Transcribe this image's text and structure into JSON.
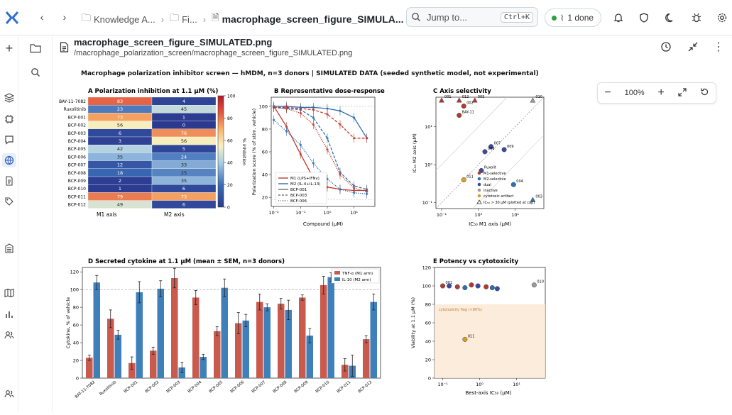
{
  "breadcrumbs": {
    "crumb1": "Knowledge A...",
    "crumb2": "Fi...",
    "current": "macrophage_screen_figure_SIMULA..."
  },
  "search": {
    "placeholder": "Jump to...",
    "shortcut": "Ctrl+K"
  },
  "status": {
    "label": "1 done"
  },
  "file": {
    "name": "macrophage_screen_figure_SIMULATED.png",
    "path": "/macrophage_polarization_screen/macrophage_screen_figure_SIMULATED.png"
  },
  "zoom": {
    "level": "100%"
  },
  "figure": {
    "suptitle": "Macrophage polarization inhibitor screen — hMDM, n=3 donors   |   SIMULATED DATA (seeded synthetic model, not experimental)",
    "panelA": {
      "title": "A  Polarization inhibition at 1.1 μM (%)",
      "rows": [
        "BAY-11-7082",
        "Ruxolitinib",
        "BCP-001",
        "BCP-002",
        "BCP-003",
        "BCP-004",
        "BCP-005",
        "BCP-006",
        "BCP-007",
        "BCP-008",
        "BCP-009",
        "BCP-010",
        "BCP-011",
        "BCP-012"
      ],
      "m1": [
        83,
        23,
        73,
        56,
        6,
        3,
        42,
        35,
        12,
        18,
        2,
        1,
        79,
        49
      ],
      "m2": [
        4,
        45,
        1,
        0,
        76,
        56,
        5,
        24,
        33,
        25,
        35,
        6,
        73,
        6
      ],
      "cols": [
        "M1 axis",
        "M2 axis"
      ],
      "cbar_label": "% inhibition",
      "cbar_ticks": [
        "0",
        "20",
        "40",
        "60",
        "80",
        "100"
      ]
    },
    "panelB": {
      "title": "B  Representative dose-response",
      "ylabel": "Polarization score (% of stim. vehicle)",
      "xlabel": "Compound (μM)",
      "xticks": [
        "10⁻²",
        "10⁻¹",
        "10⁰",
        "10¹"
      ],
      "yticks": [
        "20",
        "40",
        "60",
        "80",
        "100"
      ],
      "legend": [
        "M1 (LPS+IFNγ)",
        "M2 (IL-4+IL-13)",
        "BCP-001",
        "BCP-003",
        "BCF-006"
      ]
    },
    "panelC": {
      "title": "C  Axis selectivity",
      "ylabel": "IC₅₀ M2 axis (μM)",
      "xlabel": "IC₅₀ M1 axis (μM)",
      "xticks": [
        "10⁻¹",
        "10⁰",
        "10¹"
      ],
      "yticks": [
        "10⁻¹",
        "10⁰",
        "10¹"
      ],
      "legend": [
        "M1-selective",
        "M2-selective",
        "dual",
        "inactive",
        "cytotoxic artifact",
        "IC₅₀ > 30 μM (plotted at cap)"
      ],
      "labels": [
        "001",
        "012",
        "005",
        "002",
        "BAY-11",
        "007",
        "008",
        "009",
        "Ruxolit",
        "004",
        "011",
        "010",
        "003"
      ]
    },
    "panelD": {
      "title": "D  Secreted cytokine at 1.1 μM (mean ± SEM, n=3 donors)",
      "ylabel": "Cytokine, % of vehicle",
      "yticks": [
        "0",
        "20",
        "40",
        "60",
        "80",
        "100",
        "120"
      ],
      "categories": [
        "BAY-11-7082",
        "Ruxolitinib",
        "BCP-001",
        "BCP-002",
        "BCP-003",
        "BCP-004",
        "BCP-005",
        "BCP-006",
        "BCP-007",
        "BCP-008",
        "BCP-009",
        "BCP-010",
        "BCP-011",
        "BCP-012"
      ],
      "series": [
        {
          "name": "TNF-α (M1 arm)",
          "values": [
            23,
            67,
            17,
            31,
            113,
            91,
            53,
            62,
            86,
            84,
            91,
            105,
            15,
            44
          ]
        },
        {
          "name": "IL-10 (M2 arm)",
          "values": [
            108,
            49,
            97,
            101,
            12,
            24,
            102,
            65,
            80,
            77,
            48,
            114,
            14,
            86
          ]
        }
      ]
    },
    "panelE": {
      "title": "E  Potency vs cytotoxicity",
      "ylabel": "Viability at 1.1 μM (%)",
      "xlabel": "Best-axis IC₅₀ (μM)",
      "yticks": [
        "0",
        "20",
        "40",
        "60",
        "80",
        "100",
        "120"
      ],
      "xticks": [
        "10⁻¹",
        "10⁰",
        "10¹"
      ],
      "flag": "cytotoxicity flag (<80%)",
      "labels": [
        "001",
        "011",
        "010"
      ]
    }
  },
  "chart_data": [
    {
      "type": "heatmap",
      "title": "A  Polarization inhibition at 1.1 μM (%)",
      "rows": [
        "BAY-11-7082",
        "Ruxolitinib",
        "BCP-001",
        "BCP-002",
        "BCP-003",
        "BCP-004",
        "BCP-005",
        "BCP-006",
        "BCP-007",
        "BCP-008",
        "BCP-009",
        "BCP-010",
        "BCP-011",
        "BCP-012"
      ],
      "columns": [
        "M1 axis",
        "M2 axis"
      ],
      "values": [
        [
          83,
          4
        ],
        [
          23,
          45
        ],
        [
          73,
          1
        ],
        [
          56,
          0
        ],
        [
          6,
          76
        ],
        [
          3,
          56
        ],
        [
          42,
          5
        ],
        [
          35,
          24
        ],
        [
          12,
          33
        ],
        [
          18,
          25
        ],
        [
          2,
          35
        ],
        [
          1,
          6
        ],
        [
          79,
          73
        ],
        [
          49,
          6
        ]
      ],
      "zlim": [
        0,
        100
      ]
    },
    {
      "type": "line",
      "title": "B  Representative dose-response",
      "xscale": "log",
      "xlim": [
        0.01,
        50
      ],
      "ylim": [
        15,
        108
      ],
      "series": [
        {
          "name": "BCP-001",
          "arm": "M1",
          "x": [
            0.01,
            0.03,
            0.1,
            0.3,
            1,
            3,
            10,
            30
          ],
          "values": [
            100,
            82,
            58,
            37,
            29,
            27,
            26,
            26
          ]
        },
        {
          "name": "BCP-001",
          "arm": "M2",
          "x": [
            0.01,
            0.03,
            0.1,
            0.3,
            1,
            3,
            10,
            30
          ],
          "values": [
            100,
            100,
            99,
            99,
            98,
            96,
            90,
            72
          ]
        },
        {
          "name": "BCP-003",
          "arm": "M1",
          "x": [
            0.01,
            0.03,
            0.1,
            0.3,
            1,
            3,
            10,
            30
          ],
          "values": [
            99,
            99,
            98,
            97,
            93,
            84,
            72,
            72
          ]
        },
        {
          "name": "BCP-003",
          "arm": "M2",
          "x": [
            0.01,
            0.03,
            0.1,
            0.3,
            1,
            3,
            10,
            30
          ],
          "values": [
            99,
            98,
            97,
            90,
            72,
            42,
            30,
            27
          ]
        },
        {
          "name": "BCF-006",
          "arm": "M1",
          "x": [
            0.01,
            0.03,
            0.1,
            0.3,
            1,
            3,
            10,
            30
          ],
          "values": [
            99,
            98,
            94,
            84,
            62,
            40,
            28,
            25
          ]
        },
        {
          "name": "BCF-006",
          "arm": "M2",
          "x": [
            0.01,
            0.03,
            0.1,
            0.3,
            1,
            3,
            10,
            30
          ],
          "values": [
            88,
            78,
            66,
            50,
            36,
            27,
            24,
            23
          ]
        }
      ]
    },
    {
      "type": "scatter",
      "title": "C  Axis selectivity",
      "xscale": "log",
      "yscale": "log",
      "xlim": [
        0.07,
        60
      ],
      "ylim": [
        0.07,
        60
      ],
      "points": [
        {
          "label": "001",
          "x": 0.1,
          "y": 50,
          "class": "M1-selective"
        },
        {
          "label": "012",
          "x": 0.3,
          "y": 50,
          "class": "M1-selective"
        },
        {
          "label": "005",
          "x": 0.8,
          "y": 50,
          "class": "M1-selective"
        },
        {
          "label": "002",
          "x": 0.4,
          "y": 35,
          "class": "M1-selective"
        },
        {
          "label": "BAY-11",
          "x": 0.3,
          "y": 20,
          "class": "M1-selective"
        },
        {
          "label": "007",
          "x": 2.2,
          "y": 3,
          "class": "dual"
        },
        {
          "label": "008",
          "x": 1.5,
          "y": 2.2,
          "class": "dual"
        },
        {
          "label": "009",
          "x": 5,
          "y": 2.5,
          "class": "dual"
        },
        {
          "label": "Ruxolit",
          "x": 1.2,
          "y": 0.7,
          "class": "dual"
        },
        {
          "label": "004",
          "x": 9,
          "y": 0.3,
          "class": "M2-selective"
        },
        {
          "label": "011",
          "x": 0.4,
          "y": 0.4,
          "class": "cytotoxic artifact"
        },
        {
          "label": "010",
          "x": 30,
          "y": 50,
          "class": "inactive"
        },
        {
          "label": "003",
          "x": 30,
          "y": 0.12,
          "class": "M2-selective"
        }
      ]
    },
    {
      "type": "bar",
      "title": "D  Secreted cytokine at 1.1 μM (mean ± SEM, n=3 donors)",
      "ylim": [
        0,
        125
      ],
      "categories": [
        "BAY-11-7082",
        "Ruxolitinib",
        "BCP-001",
        "BCP-002",
        "BCP-003",
        "BCP-004",
        "BCP-005",
        "BCP-006",
        "BCP-007",
        "BCP-008",
        "BCP-009",
        "BCP-010",
        "BCP-011",
        "BCP-012"
      ],
      "series": [
        {
          "name": "TNF-α (M1 arm)",
          "values": [
            23,
            67,
            17,
            31,
            113,
            91,
            53,
            62,
            86,
            84,
            91,
            105,
            15,
            44
          ]
        },
        {
          "name": "IL-10 (M2 arm)",
          "values": [
            108,
            49,
            97,
            101,
            12,
            24,
            102,
            65,
            80,
            77,
            48,
            114,
            14,
            86
          ]
        }
      ]
    },
    {
      "type": "scatter",
      "title": "E  Potency vs cytotoxicity",
      "xscale": "log",
      "xlim": [
        0.06,
        60
      ],
      "ylim": [
        0,
        120
      ],
      "points": [
        {
          "label": "001",
          "x": 0.1,
          "y": 100
        },
        {
          "x": 0.15,
          "y": 100
        },
        {
          "x": 0.25,
          "y": 99
        },
        {
          "x": 0.4,
          "y": 98
        },
        {
          "x": 0.6,
          "y": 101
        },
        {
          "x": 0.9,
          "y": 100
        },
        {
          "x": 1.5,
          "y": 99
        },
        {
          "x": 2.2,
          "y": 98
        },
        {
          "x": 3,
          "y": 97
        },
        {
          "label": "011",
          "x": 0.4,
          "y": 42
        },
        {
          "label": "010",
          "x": 30,
          "y": 101
        }
      ]
    }
  ]
}
